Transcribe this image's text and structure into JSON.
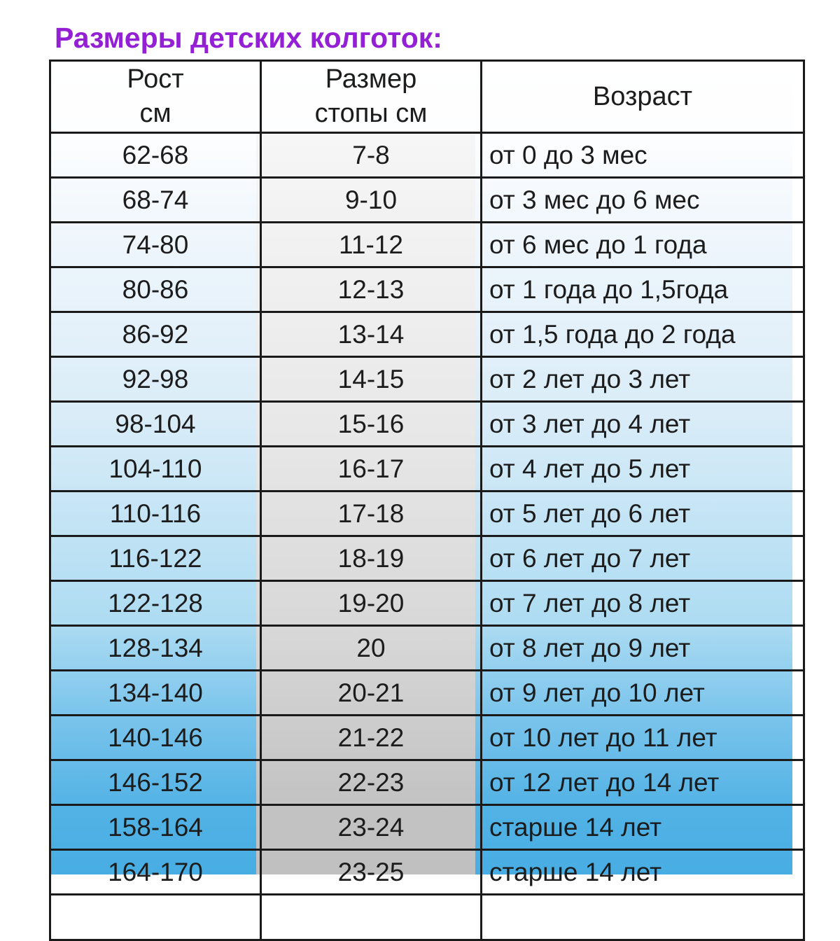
{
  "page": {
    "title": "Размеры детских колготок:"
  },
  "colors": {
    "title_purple": "#9420d6",
    "border_black": "#1a1a1a",
    "text_dark": "#1c1c1c",
    "table_blue_bottom": "#48ade3",
    "table_blue_mid": "#aedcf2",
    "table_top_white": "#ffffff",
    "foot_column_gray_bottom": "#c0c0c0",
    "foot_column_gray_top": "#f6f6f6"
  },
  "table": {
    "header_display": [
      "Рост\nсм",
      "Размер\nстопы см",
      "Возраст"
    ],
    "columns": [
      "Рост см",
      "Размер стопы см",
      "Возраст"
    ],
    "rows": [
      [
        "62-68",
        "7-8",
        "от 0 до 3 мес"
      ],
      [
        "68-74",
        "9-10",
        "от 3 мес до 6 мес"
      ],
      [
        "74-80",
        "11-12",
        "от 6 мес до 1 года"
      ],
      [
        "80-86",
        "12-13",
        "от 1 года до 1,5года"
      ],
      [
        "86-92",
        "13-14",
        "от 1,5 года до 2 года"
      ],
      [
        "92-98",
        "14-15",
        "от 2 лет до 3 лет"
      ],
      [
        "98-104",
        "15-16",
        "от 3 лет до 4 лет"
      ],
      [
        "104-110",
        "16-17",
        "от 4 лет до 5 лет"
      ],
      [
        "110-116",
        "17-18",
        "от 5 лет до 6 лет"
      ],
      [
        "116-122",
        "18-19",
        "от 6 лет до 7 лет"
      ],
      [
        "122-128",
        "19-20",
        "от 7 лет до 8 лет"
      ],
      [
        "128-134",
        "20",
        "от 8 лет до 9 лет"
      ],
      [
        "134-140",
        "20-21",
        "от 9 лет до 10 лет"
      ],
      [
        "140-146",
        "21-22",
        "от 10 лет до 11 лет"
      ],
      [
        "146-152",
        "22-23",
        "от 12 лет до 14 лет"
      ],
      [
        "158-164",
        "23-24",
        "старше 14 лет"
      ],
      [
        "164-170",
        "23-25",
        "старше 14 лет"
      ]
    ],
    "clipped_partial_row_at_bottom": true
  },
  "chart_data": {
    "type": "table",
    "title": "Размеры детских колготок:",
    "columns": [
      "Рост см",
      "Размер стопы см",
      "Возраст"
    ],
    "rows": [
      [
        "62-68",
        "7-8",
        "от 0 до 3 мес"
      ],
      [
        "68-74",
        "9-10",
        "от 3 мес до 6 мес"
      ],
      [
        "74-80",
        "11-12",
        "от 6 мес до 1 года"
      ],
      [
        "80-86",
        "12-13",
        "от 1 года до 1,5года"
      ],
      [
        "86-92",
        "13-14",
        "от 1,5 года до 2 года"
      ],
      [
        "92-98",
        "14-15",
        "от 2 лет до 3 лет"
      ],
      [
        "98-104",
        "15-16",
        "от 3 лет до 4 лет"
      ],
      [
        "104-110",
        "16-17",
        "от 4 лет до 5 лет"
      ],
      [
        "110-116",
        "17-18",
        "от 5 лет до 6 лет"
      ],
      [
        "116-122",
        "18-19",
        "от 6 лет до 7 лет"
      ],
      [
        "122-128",
        "19-20",
        "от 7 лет до 8 лет"
      ],
      [
        "128-134",
        "20",
        "от 8 лет до 9 лет"
      ],
      [
        "134-140",
        "20-21",
        "от 9 лет до 10 лет"
      ],
      [
        "140-146",
        "21-22",
        "от 10 лет до 11 лет"
      ],
      [
        "146-152",
        "22-23",
        "от 12 лет до 14 лет"
      ],
      [
        "158-164",
        "23-24",
        "старше 14 лет"
      ],
      [
        "164-170",
        "23-25",
        "старше 14 лет"
      ]
    ]
  }
}
